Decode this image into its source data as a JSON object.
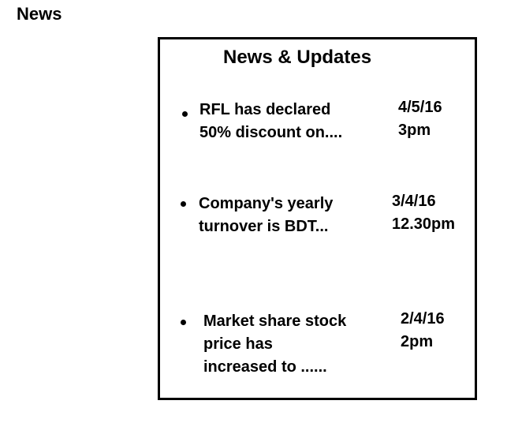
{
  "page": {
    "heading": "News"
  },
  "panel": {
    "title": "News & Updates",
    "items": [
      {
        "headline": "RFL has declared\n50% discount on....",
        "date": "4/5/16",
        "time": "3pm"
      },
      {
        "headline": "Company's yearly\nturnover is BDT...",
        "date": "3/4/16",
        "time": "12.30pm"
      },
      {
        "headline": "Market share stock\nprice has\nincreased to ......",
        "date": "2/4/16",
        "time": "2pm"
      }
    ]
  },
  "colors": {
    "text": "#000000",
    "background": "#ffffff",
    "border": "#000000"
  }
}
